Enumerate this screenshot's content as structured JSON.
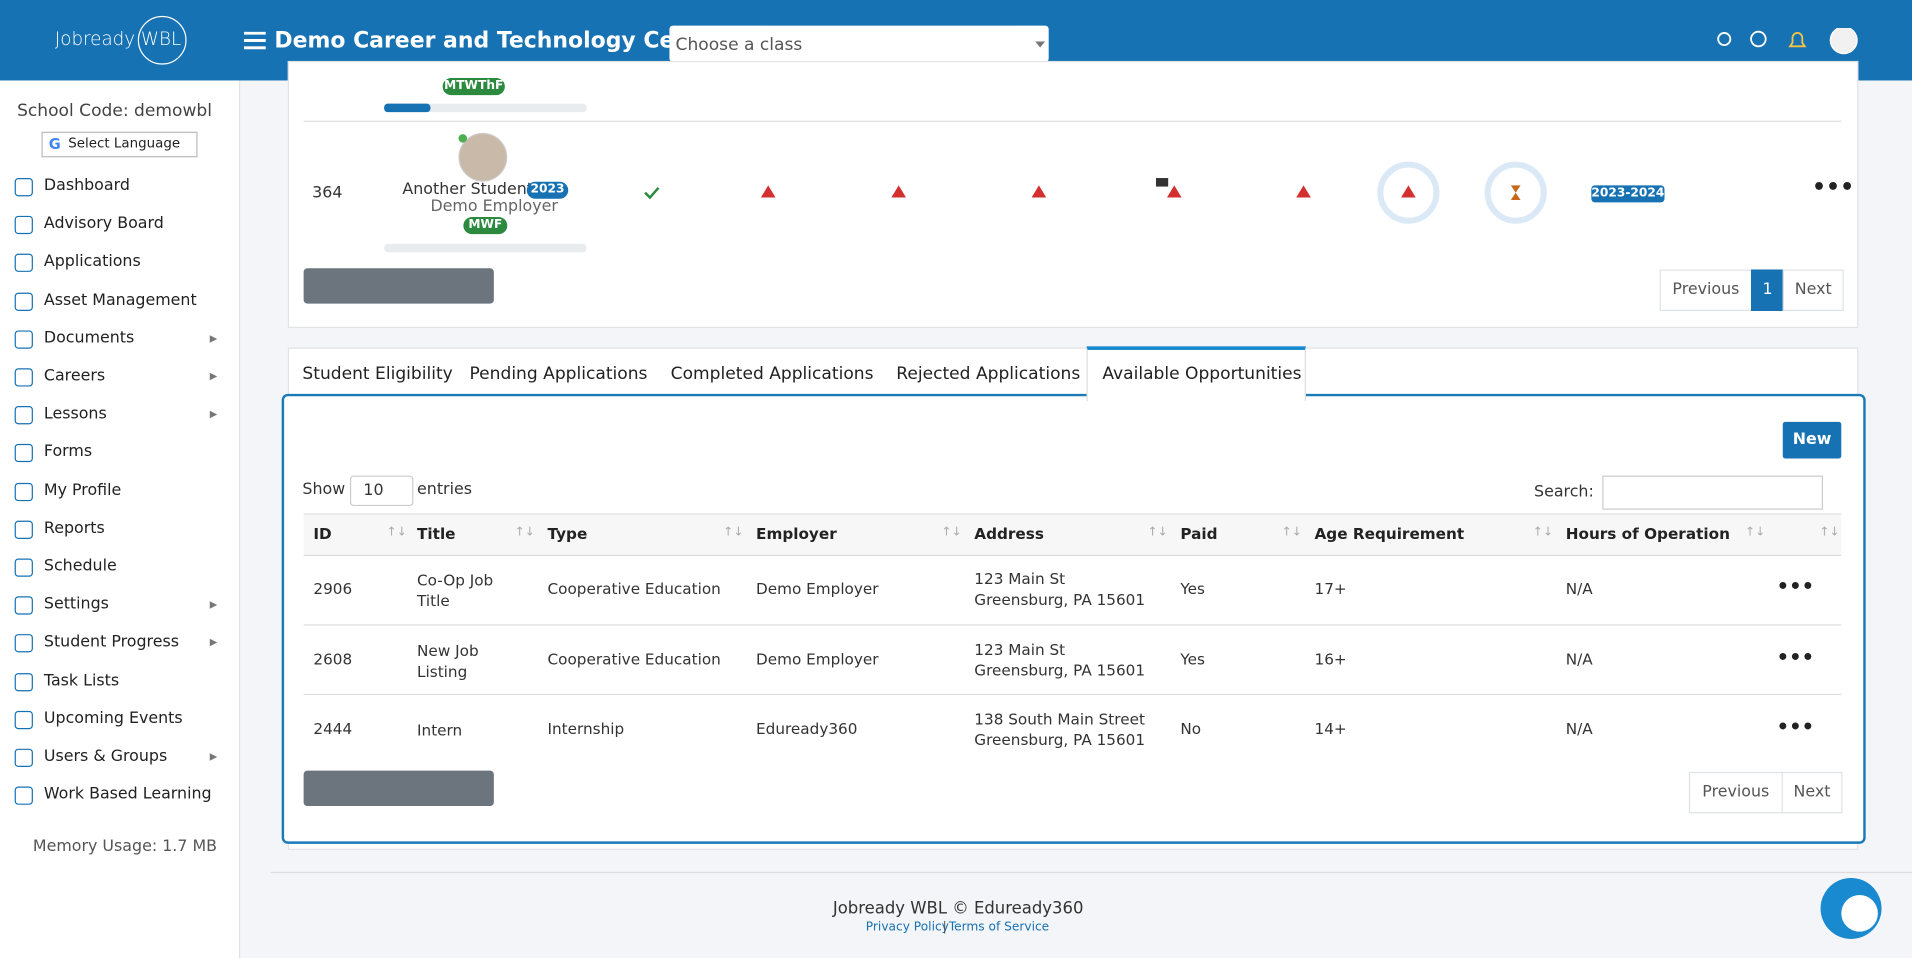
{
  "header": {
    "brand": "Jobready WBL",
    "title": "Demo Career and Technology Center",
    "class_select": "Choose a class"
  },
  "sidebar": {
    "school_code": "School Code: demowbl",
    "language": "Select Language",
    "menu": [
      {
        "label": "Dashboard",
        "submenu": false
      },
      {
        "label": "Advisory Board",
        "submenu": false
      },
      {
        "label": "Applications",
        "submenu": false
      },
      {
        "label": "Asset Management",
        "submenu": false
      },
      {
        "label": "Documents",
        "submenu": true
      },
      {
        "label": "Careers",
        "submenu": true
      },
      {
        "label": "Lessons",
        "submenu": true
      },
      {
        "label": "Forms",
        "submenu": false
      },
      {
        "label": "My Profile",
        "submenu": false
      },
      {
        "label": "Reports",
        "submenu": false
      },
      {
        "label": "Schedule",
        "submenu": false
      },
      {
        "label": "Settings",
        "submenu": true
      },
      {
        "label": "Student Progress",
        "submenu": true
      },
      {
        "label": "Task Lists",
        "submenu": false
      },
      {
        "label": "Upcoming Events",
        "submenu": false
      },
      {
        "label": "Users & Groups",
        "submenu": true
      },
      {
        "label": "Work Based Learning",
        "submenu": false
      }
    ],
    "memory": "Memory Usage: 1.7 MB"
  },
  "student_table": {
    "prev_days": "MTWThF",
    "row": {
      "id": "364",
      "name": "Another Student",
      "badge": "2023",
      "employer": "Demo Employer",
      "days": "MWF",
      "year": "2023-2024"
    },
    "pagination": {
      "previous": "Previous",
      "page": "1",
      "next": "Next"
    }
  },
  "tabs": [
    "Student Eligibility",
    "Pending Applications",
    "Completed Applications",
    "Rejected Applications",
    "Available Opportunities"
  ],
  "opportunities": {
    "new_button": "New",
    "show": "Show",
    "entries_value": "10",
    "entries": "entries",
    "search": "Search:",
    "columns": [
      "ID",
      "Title",
      "Type",
      "Employer",
      "Address",
      "Paid",
      "Age Requirement",
      "Hours of Operation"
    ],
    "rows": [
      [
        "2906",
        "Co-Op Job Title",
        "Cooperative Education",
        "Demo Employer",
        [
          "123 Main St",
          "Greensburg, PA 15601"
        ],
        "Yes",
        "17+",
        "N/A"
      ],
      [
        "2608",
        "New Job Listing",
        "Cooperative Education",
        "Demo Employer",
        [
          "123 Main St",
          "Greensburg, PA 15601"
        ],
        "Yes",
        "16+",
        "N/A"
      ],
      [
        "2444",
        "Intern",
        "Internship",
        "Eduready360",
        [
          "138 South Main Street",
          "Greensburg, PA 15601"
        ],
        "No",
        "14+",
        "N/A"
      ]
    ],
    "pagination": {
      "previous": "Previous",
      "next": "Next"
    }
  },
  "footer": {
    "copyright": "Jobready WBL © Eduready360",
    "privacy": "Privacy Policy",
    "separator": "|",
    "terms": "Terms of Service"
  }
}
